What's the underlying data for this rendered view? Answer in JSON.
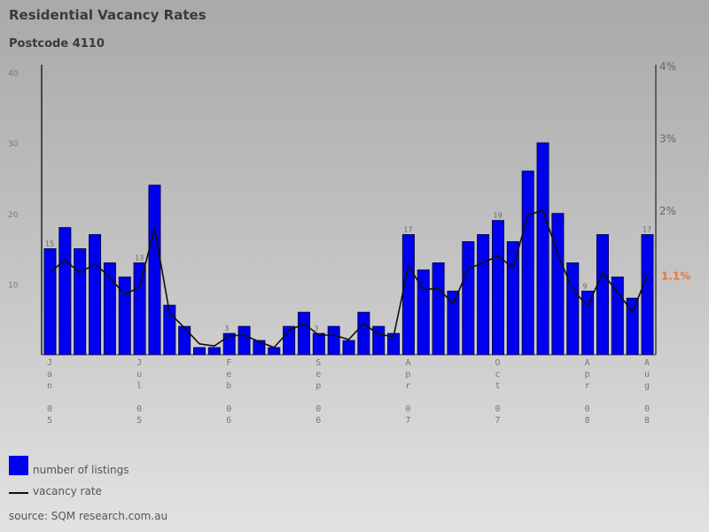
{
  "title": "Residential Vacancy Rates",
  "subtitle": "Postcode 4110",
  "legend": {
    "listings": "number of listings",
    "vacancy": "vacancy rate"
  },
  "source": "source: SQM research.com.au",
  "colors": {
    "bar": "#0000f0",
    "line": "#111111",
    "current": "#e8772e"
  },
  "chart_data": {
    "type": "bar",
    "title": "Residential Vacancy Rates",
    "subtitle": "Postcode 4110",
    "left_axis": {
      "label": "number of listings",
      "range": [
        0,
        40
      ],
      "ticks": [
        "10",
        "20",
        "30",
        "40"
      ]
    },
    "right_axis": {
      "label": "vacancy rate",
      "range": [
        0,
        4
      ],
      "ticks": [
        "2%",
        "3%",
        "4%"
      ],
      "current_label": "1.1%"
    },
    "x_tick_labels": [
      {
        "index": 0,
        "month": "Jan",
        "year": "05"
      },
      {
        "index": 6,
        "month": "Jul",
        "year": "05"
      },
      {
        "index": 12,
        "month": "Feb",
        "year": "06"
      },
      {
        "index": 18,
        "month": "Sep",
        "year": "06"
      },
      {
        "index": 24,
        "month": "Apr",
        "year": "07"
      },
      {
        "index": 30,
        "month": "Oct",
        "year": "07"
      },
      {
        "index": 36,
        "month": "Apr",
        "year": "08"
      },
      {
        "index": 40,
        "month": "Aug",
        "year": "08"
      }
    ],
    "series": [
      {
        "name": "number of listings",
        "type": "bar",
        "values": [
          15,
          18,
          15,
          17,
          13,
          11,
          13,
          24,
          7,
          4,
          1,
          1,
          3,
          4,
          2,
          1,
          4,
          6,
          3,
          4,
          2,
          6,
          4,
          3,
          17,
          12,
          13,
          9,
          16,
          17,
          19,
          16,
          26,
          30,
          20,
          13,
          9,
          17,
          11,
          8,
          17
        ]
      },
      {
        "name": "vacancy rate",
        "type": "line",
        "unit": "%",
        "values": [
          1.14,
          1.31,
          1.13,
          1.26,
          1.07,
          0.83,
          0.94,
          1.75,
          0.58,
          0.37,
          0.15,
          0.12,
          0.26,
          0.27,
          0.18,
          0.1,
          0.33,
          0.43,
          0.27,
          0.27,
          0.21,
          0.43,
          0.28,
          0.25,
          1.23,
          0.9,
          0.92,
          0.7,
          1.19,
          1.27,
          1.37,
          1.2,
          1.93,
          2.0,
          1.39,
          0.9,
          0.67,
          1.13,
          0.86,
          0.59,
          1.1
        ]
      }
    ],
    "data_labels": [
      {
        "index": 0,
        "text": "15"
      },
      {
        "index": 6,
        "text": "13"
      },
      {
        "index": 12,
        "text": "3"
      },
      {
        "index": 18,
        "text": "3"
      },
      {
        "index": 24,
        "text": "17"
      },
      {
        "index": 30,
        "text": "19"
      },
      {
        "index": 36,
        "text": "9"
      },
      {
        "index": 40,
        "text": "17"
      }
    ],
    "grid": false,
    "legend_position": "bottom-left"
  }
}
